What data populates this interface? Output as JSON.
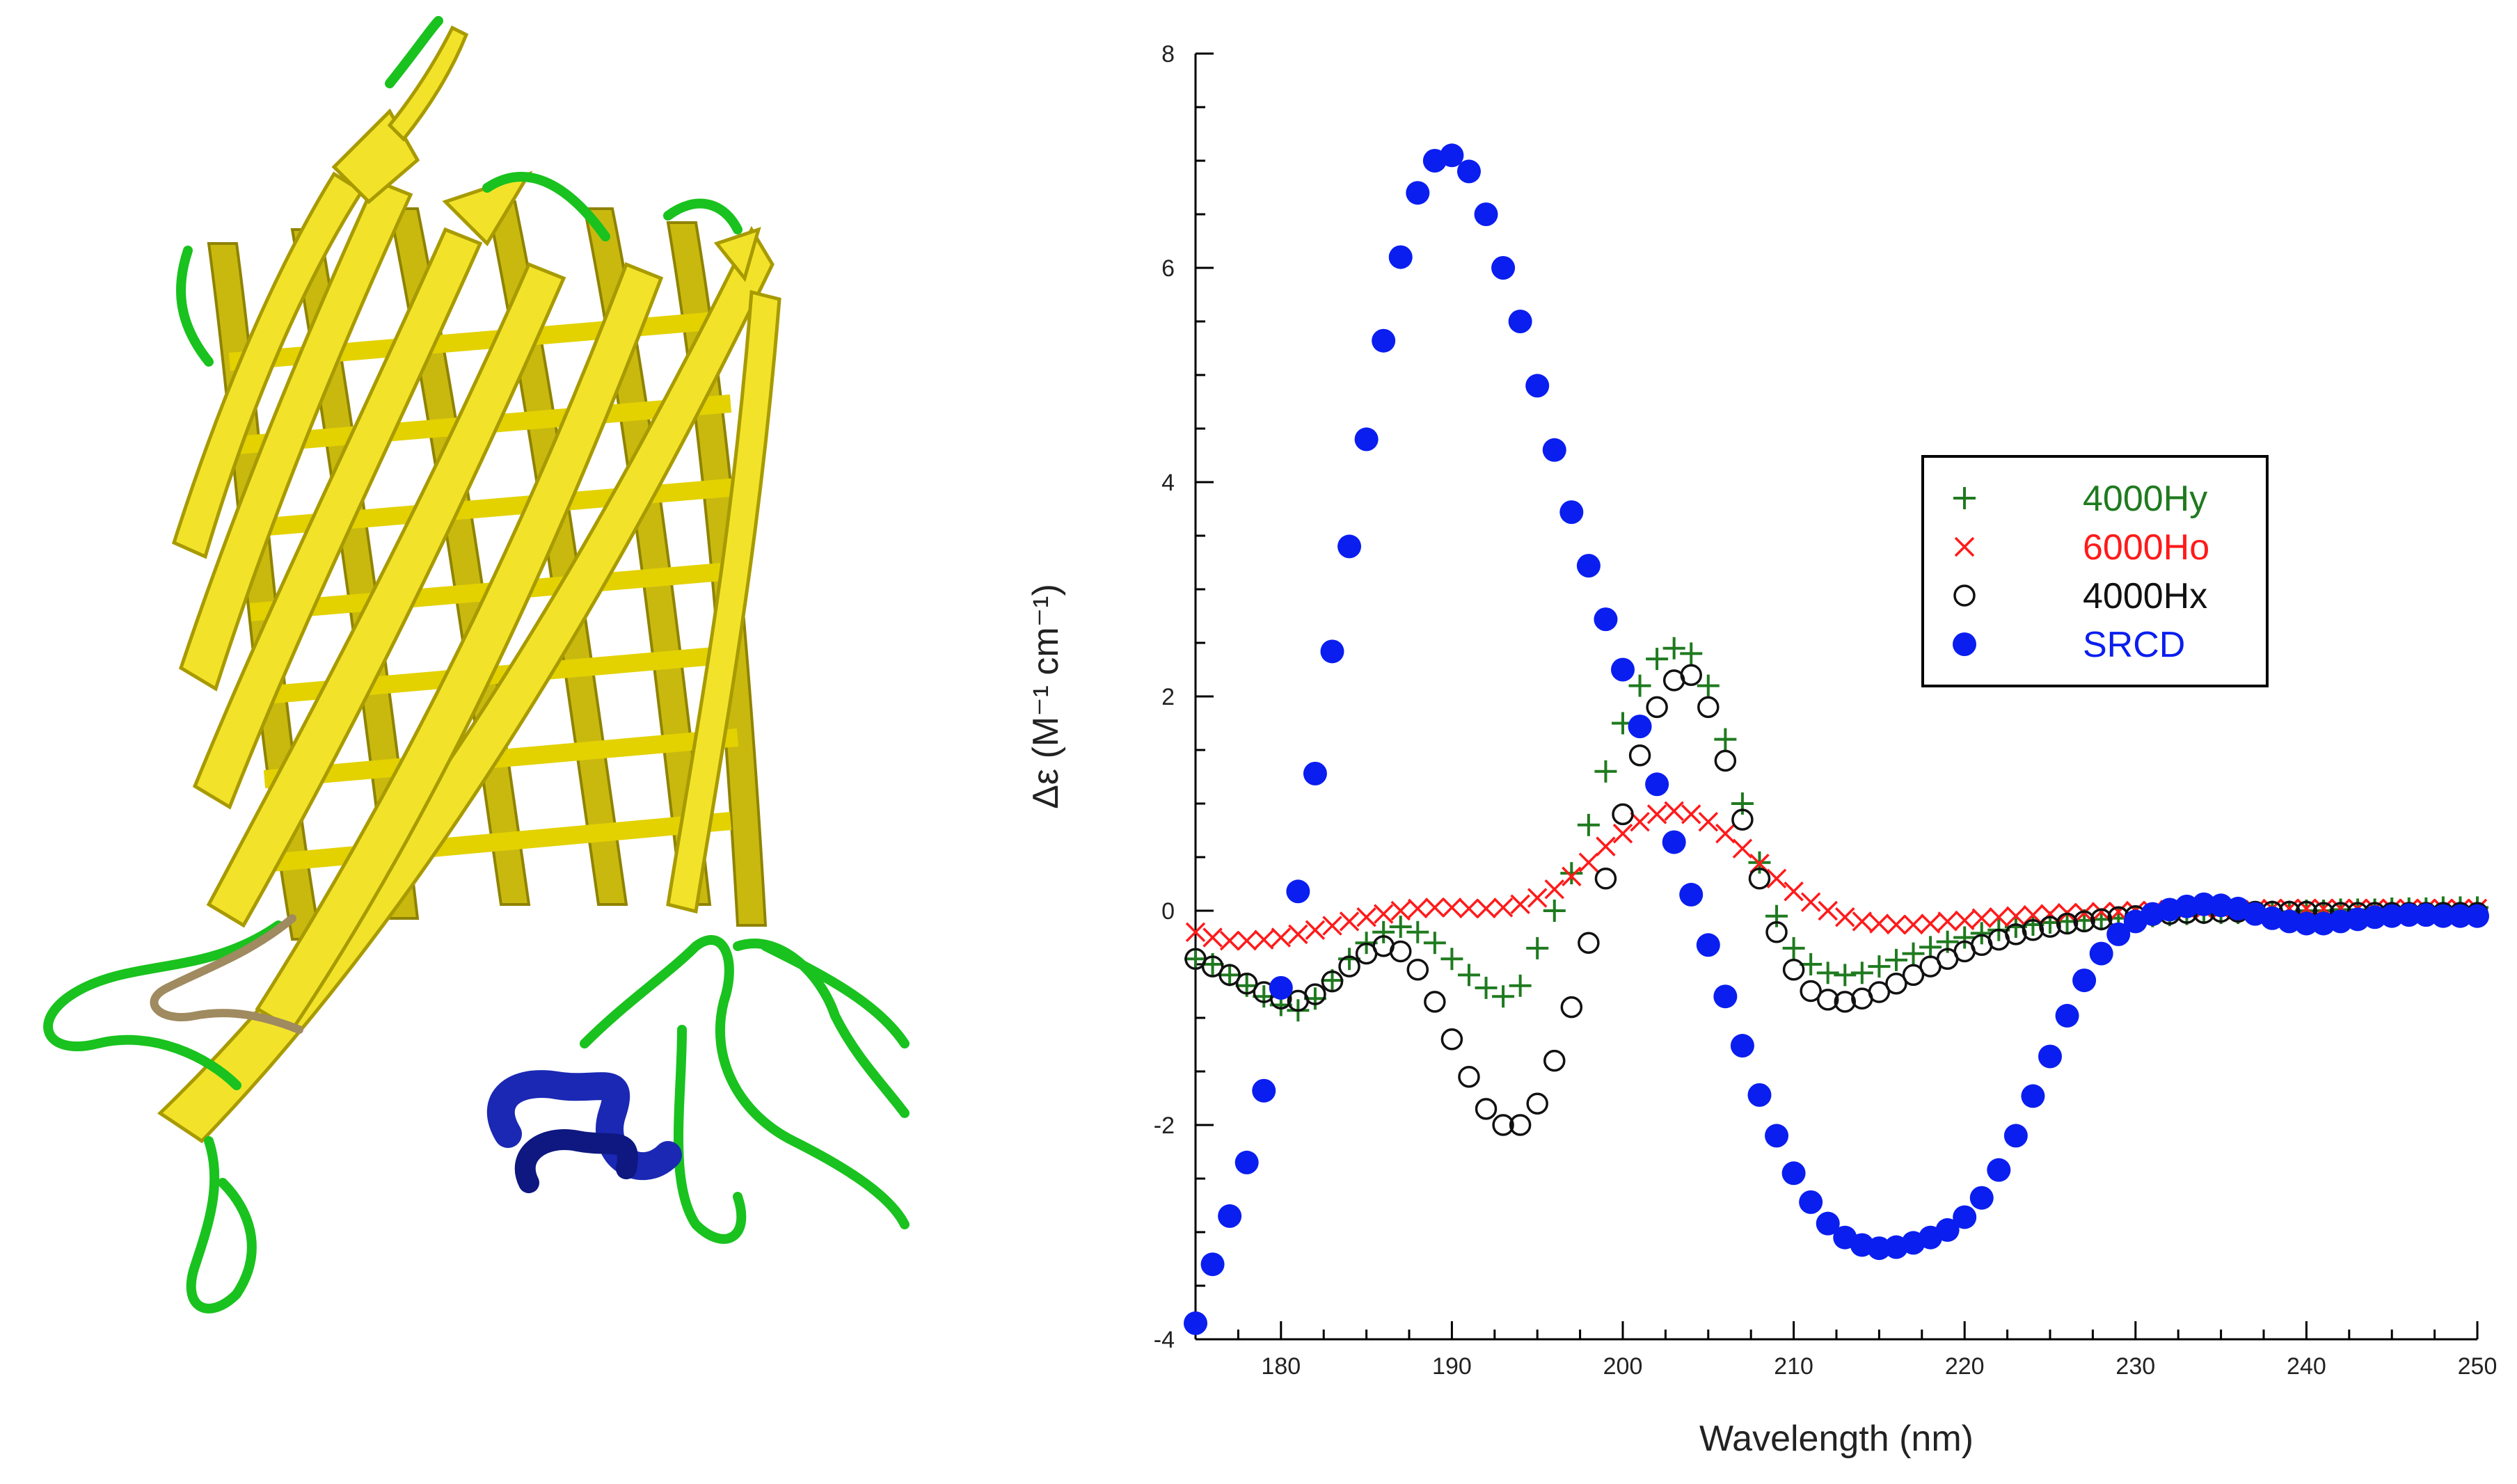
{
  "protein_image": {
    "description": "beta-barrel-ribbon",
    "colors": {
      "strand": "#e8d81a",
      "strand_dark": "#b5a800",
      "coil": "#19c21e",
      "helix": "#1a28b4",
      "tan": "#a08a60"
    }
  },
  "chart_data": {
    "type": "scatter",
    "title": "",
    "xlabel": "Wavelength (nm)",
    "ylabel": "Δε (M⁻¹ cm⁻¹)",
    "xlim": [
      175,
      250
    ],
    "ylim": [
      -4,
      8
    ],
    "xticks": [
      180,
      190,
      200,
      210,
      220,
      230,
      240,
      250
    ],
    "yticks": [
      -4,
      -2,
      0,
      2,
      4,
      6,
      8
    ],
    "grid": false,
    "legend_position": "right",
    "series": [
      {
        "name": "4000Hy",
        "marker": "plus",
        "color": "#1f7a1f",
        "x": [
          175,
          176,
          177,
          178,
          179,
          180,
          181,
          182,
          183,
          184,
          185,
          186,
          187,
          188,
          189,
          190,
          191,
          192,
          193,
          194,
          195,
          196,
          197,
          198,
          199,
          200,
          201,
          202,
          203,
          204,
          205,
          206,
          207,
          208,
          209,
          210,
          211,
          212,
          213,
          214,
          215,
          216,
          217,
          218,
          219,
          220,
          221,
          222,
          223,
          224,
          225,
          226,
          227,
          228,
          229,
          230,
          231,
          232,
          233,
          234,
          235,
          236,
          237,
          238,
          239,
          240,
          241,
          242,
          243,
          244,
          245,
          246,
          247,
          248,
          249,
          250
        ],
        "y": [
          -0.45,
          -0.5,
          -0.6,
          -0.7,
          -0.8,
          -0.88,
          -0.93,
          -0.82,
          -0.65,
          -0.45,
          -0.3,
          -0.2,
          -0.15,
          -0.2,
          -0.3,
          -0.45,
          -0.6,
          -0.72,
          -0.8,
          -0.7,
          -0.35,
          0.0,
          0.35,
          0.8,
          1.3,
          1.75,
          2.1,
          2.35,
          2.45,
          2.4,
          2.1,
          1.6,
          1.0,
          0.45,
          -0.05,
          -0.35,
          -0.5,
          -0.58,
          -0.6,
          -0.58,
          -0.52,
          -0.46,
          -0.4,
          -0.34,
          -0.29,
          -0.25,
          -0.21,
          -0.18,
          -0.15,
          -0.13,
          -0.11,
          -0.1,
          -0.09,
          -0.08,
          -0.07,
          -0.06,
          -0.05,
          -0.04,
          -0.03,
          -0.02,
          -0.02,
          -0.02,
          -0.02,
          -0.01,
          -0.01,
          0.0,
          0.0,
          0.01,
          0.01,
          0.01,
          0.02,
          0.02,
          0.02,
          0.03,
          0.03,
          0.03
        ]
      },
      {
        "name": "6000Ho",
        "marker": "x",
        "color": "#ff1a1a",
        "x": [
          175,
          176,
          177,
          178,
          179,
          180,
          181,
          182,
          183,
          184,
          185,
          186,
          187,
          188,
          189,
          190,
          191,
          192,
          193,
          194,
          195,
          196,
          197,
          198,
          199,
          200,
          201,
          202,
          203,
          204,
          205,
          206,
          207,
          208,
          209,
          210,
          211,
          212,
          213,
          214,
          215,
          216,
          217,
          218,
          219,
          220,
          221,
          222,
          223,
          224,
          225,
          226,
          227,
          228,
          229,
          230,
          231,
          232,
          233,
          234,
          235,
          236,
          237,
          238,
          239,
          240,
          241,
          242,
          243,
          244,
          245,
          246,
          247,
          248,
          249,
          250
        ],
        "y": [
          -0.2,
          -0.25,
          -0.28,
          -0.28,
          -0.27,
          -0.25,
          -0.22,
          -0.18,
          -0.14,
          -0.1,
          -0.06,
          -0.03,
          0.0,
          0.02,
          0.03,
          0.03,
          0.02,
          0.02,
          0.03,
          0.06,
          0.12,
          0.2,
          0.32,
          0.45,
          0.6,
          0.72,
          0.83,
          0.9,
          0.93,
          0.9,
          0.83,
          0.72,
          0.58,
          0.44,
          0.3,
          0.18,
          0.08,
          0.0,
          -0.06,
          -0.1,
          -0.12,
          -0.13,
          -0.13,
          -0.12,
          -0.1,
          -0.09,
          -0.07,
          -0.06,
          -0.05,
          -0.04,
          -0.03,
          -0.02,
          -0.02,
          -0.01,
          -0.01,
          0.0,
          0.0,
          0.01,
          0.01,
          0.01,
          0.01,
          0.01,
          0.01,
          0.02,
          0.02,
          0.02,
          0.02,
          0.02,
          0.02,
          0.02,
          0.02,
          0.02,
          0.02,
          0.02,
          0.02,
          0.02
        ]
      },
      {
        "name": "4000Hx",
        "marker": "circle-open",
        "color": "#111111",
        "x": [
          175,
          176,
          177,
          178,
          179,
          180,
          181,
          182,
          183,
          184,
          185,
          186,
          187,
          188,
          189,
          190,
          191,
          192,
          193,
          194,
          195,
          196,
          197,
          198,
          199,
          200,
          201,
          202,
          203,
          204,
          205,
          206,
          207,
          208,
          209,
          210,
          211,
          212,
          213,
          214,
          215,
          216,
          217,
          218,
          219,
          220,
          221,
          222,
          223,
          224,
          225,
          226,
          227,
          228,
          229,
          230,
          231,
          232,
          233,
          234,
          235,
          236,
          237,
          238,
          239,
          240,
          241,
          242,
          243,
          244,
          245,
          246,
          247,
          248,
          249,
          250
        ],
        "y": [
          -0.45,
          -0.52,
          -0.6,
          -0.68,
          -0.76,
          -0.82,
          -0.84,
          -0.78,
          -0.66,
          -0.52,
          -0.4,
          -0.33,
          -0.38,
          -0.55,
          -0.85,
          -1.2,
          -1.55,
          -1.85,
          -2.0,
          -2.0,
          -1.8,
          -1.4,
          -0.9,
          -0.3,
          0.3,
          0.9,
          1.45,
          1.9,
          2.15,
          2.2,
          1.9,
          1.4,
          0.85,
          0.3,
          -0.2,
          -0.55,
          -0.75,
          -0.83,
          -0.85,
          -0.82,
          -0.76,
          -0.68,
          -0.6,
          -0.52,
          -0.45,
          -0.38,
          -0.32,
          -0.27,
          -0.22,
          -0.18,
          -0.15,
          -0.12,
          -0.1,
          -0.08,
          -0.06,
          -0.05,
          -0.04,
          -0.03,
          -0.02,
          -0.02,
          -0.01,
          -0.01,
          -0.01,
          -0.01,
          -0.01,
          -0.01,
          -0.02,
          -0.02,
          -0.02,
          -0.02,
          -0.02,
          -0.02,
          -0.02,
          -0.02,
          -0.02,
          -0.02
        ]
      },
      {
        "name": "SRCD",
        "marker": "circle-filled",
        "color": "#0a1ef0",
        "x": [
          175,
          176,
          177,
          178,
          179,
          180,
          181,
          182,
          183,
          184,
          185,
          186,
          187,
          188,
          189,
          190,
          191,
          192,
          193,
          194,
          195,
          196,
          197,
          198,
          199,
          200,
          201,
          202,
          203,
          204,
          205,
          206,
          207,
          208,
          209,
          210,
          211,
          212,
          213,
          214,
          215,
          216,
          217,
          218,
          219,
          220,
          221,
          222,
          223,
          224,
          225,
          226,
          227,
          228,
          229,
          230,
          231,
          232,
          233,
          234,
          235,
          236,
          237,
          238,
          239,
          240,
          241,
          242,
          243,
          244,
          245,
          246,
          247,
          248,
          249,
          250
        ],
        "y": [
          -3.85,
          -3.3,
          -2.85,
          -2.35,
          -1.68,
          -0.72,
          0.18,
          1.28,
          2.42,
          3.4,
          4.4,
          5.32,
          6.1,
          6.7,
          7.0,
          7.05,
          6.9,
          6.5,
          6.0,
          5.5,
          4.9,
          4.3,
          3.72,
          3.22,
          2.72,
          2.25,
          1.72,
          1.18,
          0.64,
          0.15,
          -0.32,
          -0.8,
          -1.26,
          -1.72,
          -2.1,
          -2.45,
          -2.72,
          -2.92,
          -3.05,
          -3.12,
          -3.15,
          -3.14,
          -3.1,
          -3.05,
          -2.98,
          -2.86,
          -2.68,
          -2.42,
          -2.1,
          -1.73,
          -1.36,
          -0.98,
          -0.65,
          -0.4,
          -0.22,
          -0.1,
          -0.03,
          0.01,
          0.04,
          0.06,
          0.05,
          0.02,
          -0.03,
          -0.07,
          -0.1,
          -0.12,
          -0.12,
          -0.1,
          -0.08,
          -0.06,
          -0.05,
          -0.04,
          -0.04,
          -0.05,
          -0.05,
          -0.05
        ]
      }
    ]
  }
}
